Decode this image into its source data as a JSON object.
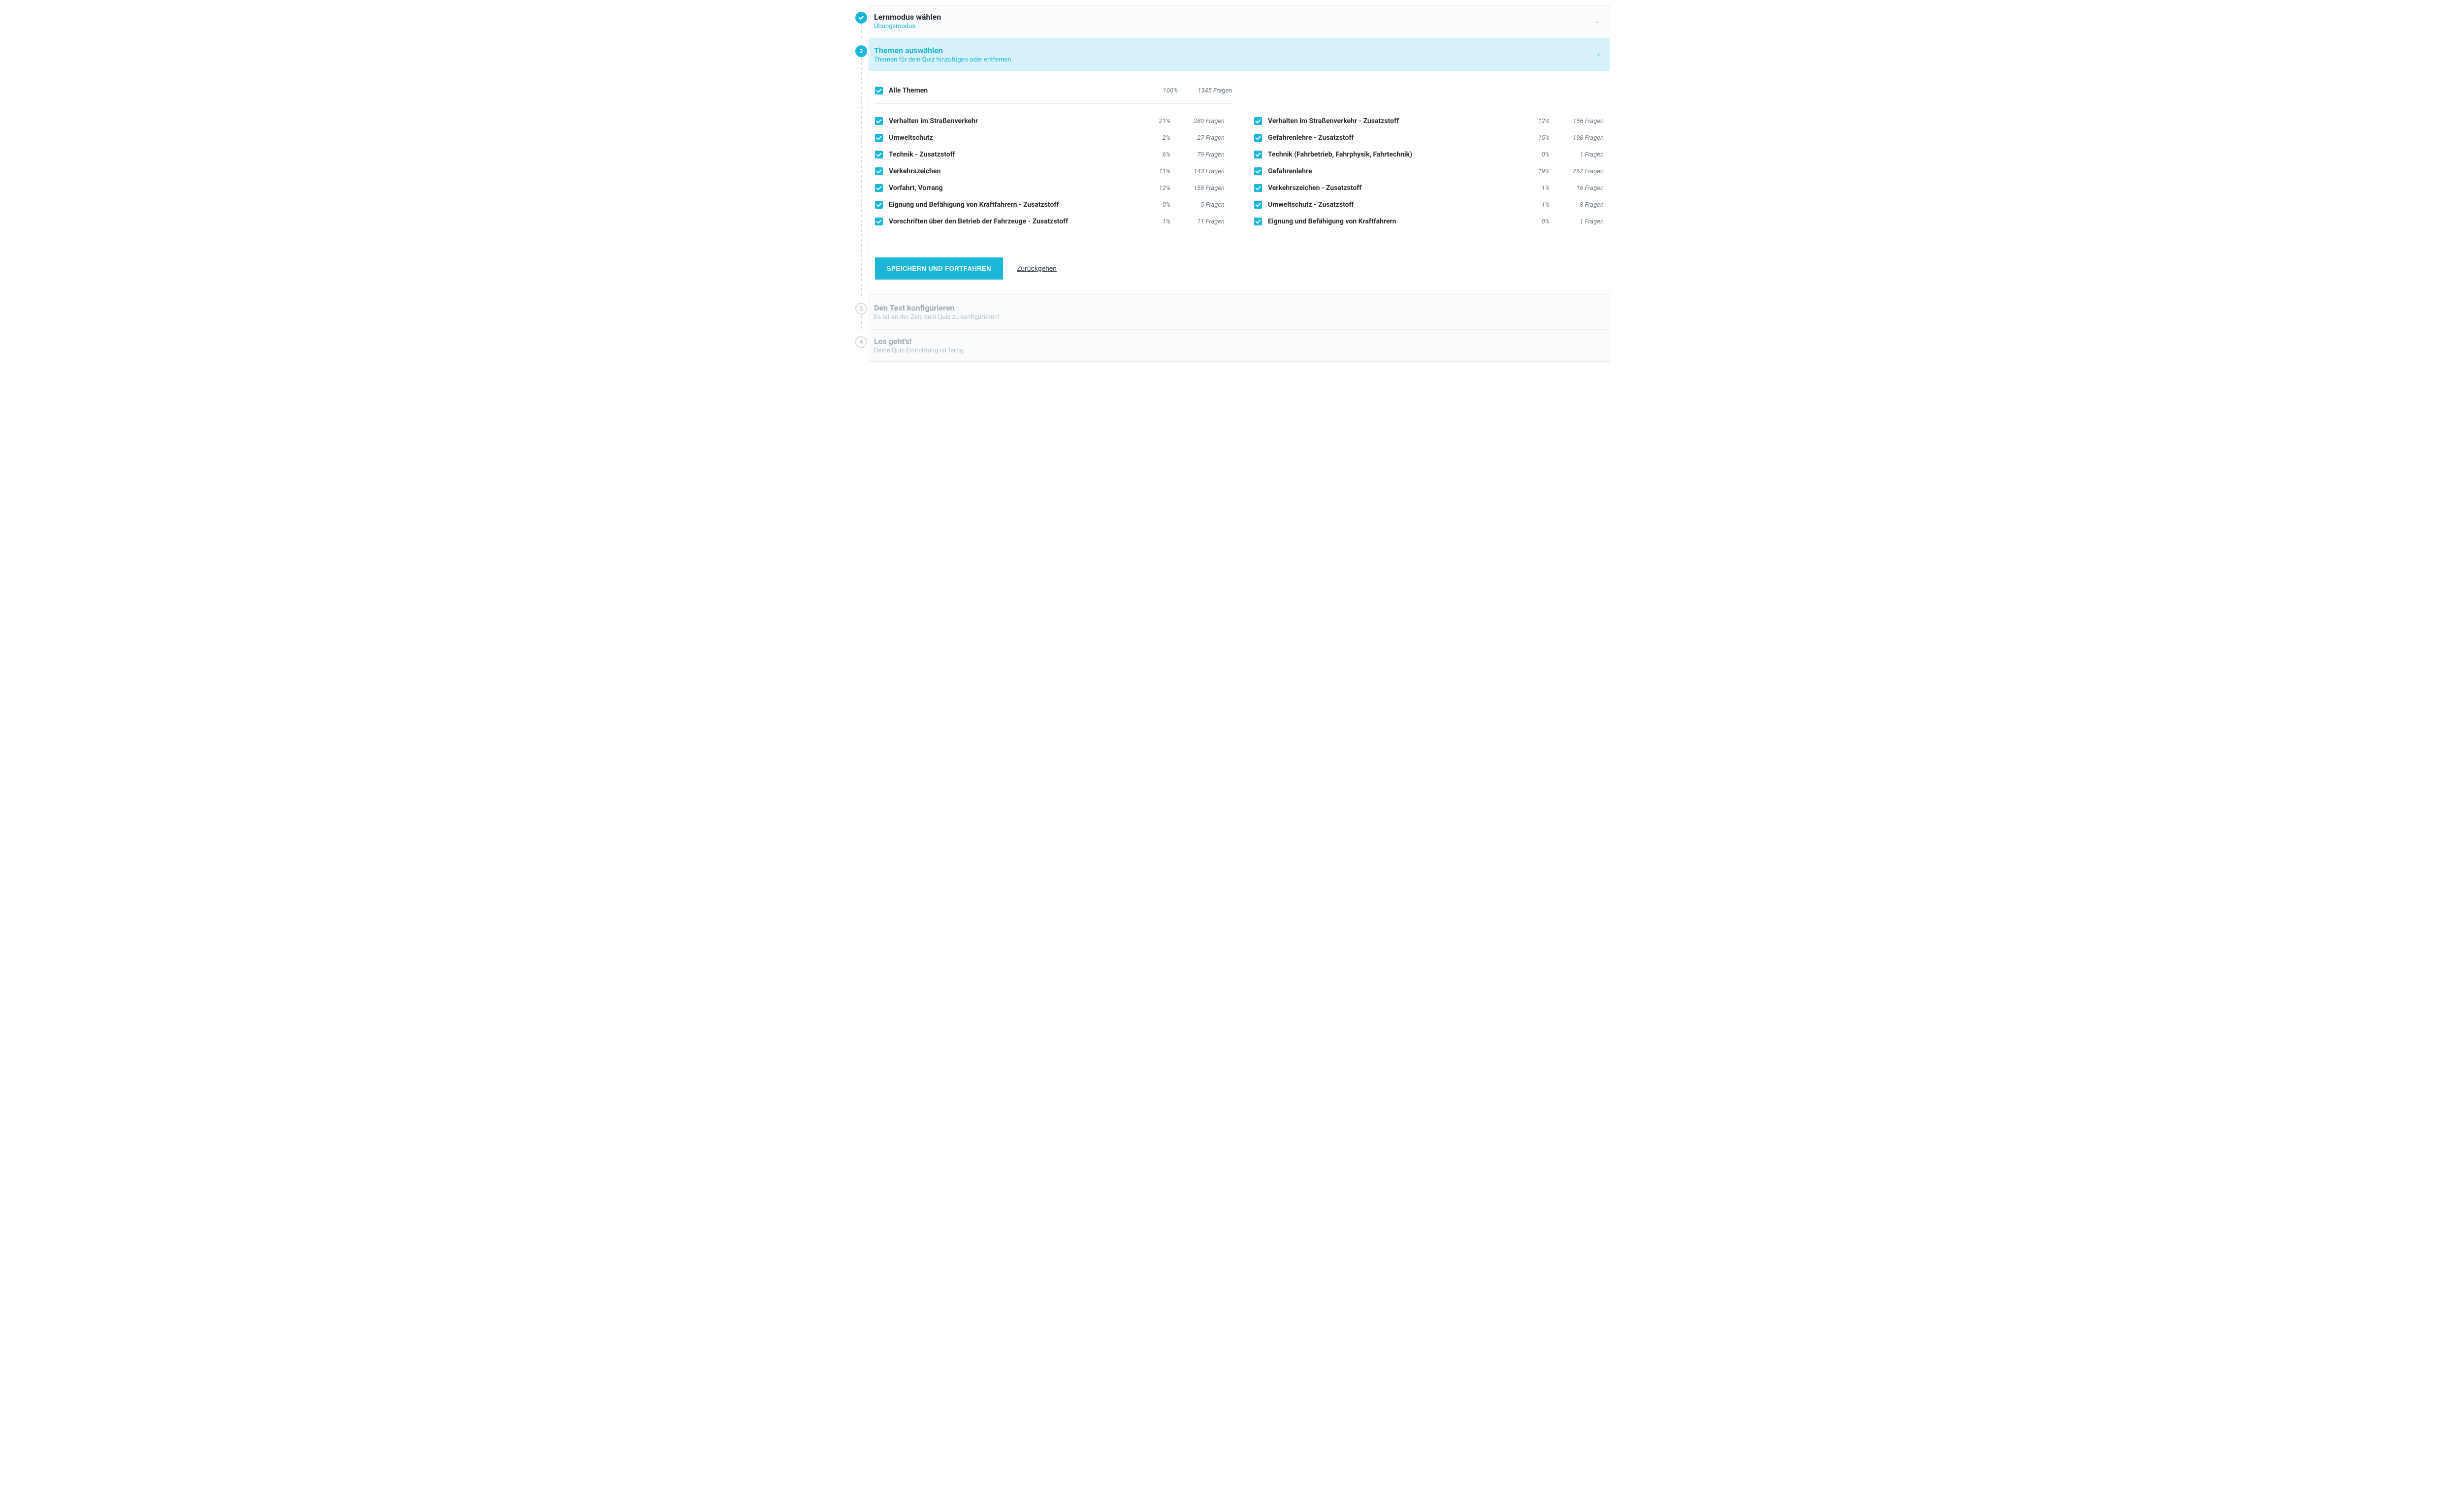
{
  "colors": {
    "accent": "#1cb6d8",
    "active_bg": "#d7f2fa",
    "border": "#e8eaed",
    "muted": "#6c7680"
  },
  "steps": [
    {
      "badge": "✓",
      "state": "done",
      "title": "Lernmodus wählen",
      "sub": "Übungsmodus",
      "chevron": "⌄"
    },
    {
      "badge": "2",
      "state": "active",
      "title": "Themen auswählen",
      "sub": "Themen für dein Quiz hinzufügen oder entfernen",
      "chevron": "›"
    },
    {
      "badge": "3",
      "state": "pending",
      "title": "Den Test konfigurieren",
      "sub": "Es ist an der Zeit, dein Quiz zu konfigurieren!"
    },
    {
      "badge": "4",
      "state": "pending",
      "title": "Los geht's!",
      "sub": "Deine Quiz-Einrichtung ist fertig."
    }
  ],
  "all_topics": {
    "label": "Alle Themen",
    "pct": "100%",
    "questions": "1345 Fragen",
    "checked": true
  },
  "left_topics": [
    {
      "label": "Verhalten im Straßenverkehr",
      "pct": "21%",
      "questions": "280 Fragen",
      "checked": true
    },
    {
      "label": "Umweltschutz",
      "pct": "2%",
      "questions": "27 Fragen",
      "checked": true
    },
    {
      "label": "Technik - Zusatzstoff",
      "pct": "6%",
      "questions": "79 Fragen",
      "checked": true
    },
    {
      "label": "Verkehrszeichen",
      "pct": "11%",
      "questions": "143 Fragen",
      "checked": true
    },
    {
      "label": "Vorfahrt, Vorrang",
      "pct": "12%",
      "questions": "158 Fragen",
      "checked": true
    },
    {
      "label": "Eignung und Befähigung von Kraftfahrern - Zusatzstoff",
      "pct": "0%",
      "questions": "5 Fragen",
      "checked": true
    },
    {
      "label": "Vorschriften über den Betrieb der Fahrzeuge - Zusatzstoff",
      "pct": "1%",
      "questions": "11 Fragen",
      "checked": true
    }
  ],
  "right_topics": [
    {
      "label": "Verhalten im Straßenverkehr - Zusatzstoff",
      "pct": "12%",
      "questions": "156 Fragen",
      "checked": true
    },
    {
      "label": "Gefahrenlehre - Zusatzstoff",
      "pct": "15%",
      "questions": "198 Fragen",
      "checked": true
    },
    {
      "label": "Technik (Fahrbetrieb, Fahrphysik, Fahrtechnik)",
      "pct": "0%",
      "questions": "1 Fragen",
      "checked": true
    },
    {
      "label": "Gefahrenlehre",
      "pct": "19%",
      "questions": "262 Fragen",
      "checked": true
    },
    {
      "label": "Verkehrszeichen - Zusatzstoff",
      "pct": "1%",
      "questions": "16 Fragen",
      "checked": true
    },
    {
      "label": "Umweltschutz - Zusatzstoff",
      "pct": "1%",
      "questions": "8 Fragen",
      "checked": true
    },
    {
      "label": "Eignung und Befähigung von Kraftfahrern",
      "pct": "0%",
      "questions": "1 Fragen",
      "checked": true
    }
  ],
  "actions": {
    "primary": "Speichern und Fortfahren",
    "back": "Zurückgehen"
  }
}
